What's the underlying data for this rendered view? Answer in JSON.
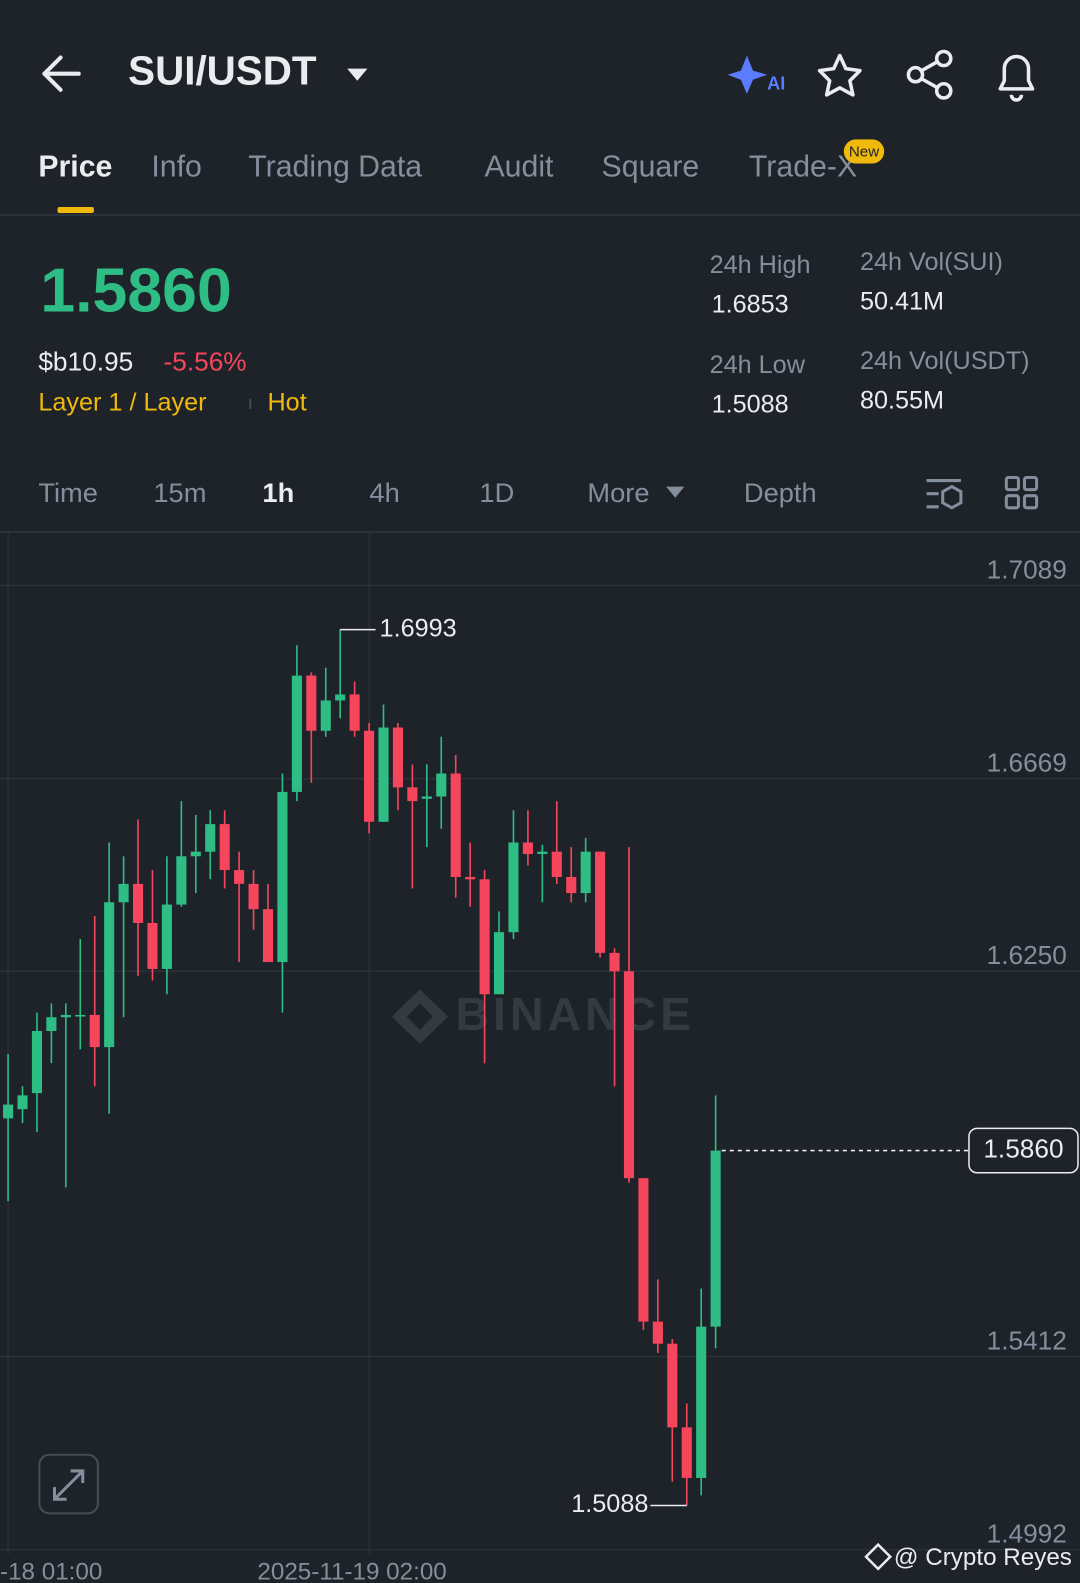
{
  "header": {
    "title": "SUI/USDT"
  },
  "tabs": {
    "items": [
      "Price",
      "Info",
      "Trading Data",
      "Audit",
      "Square",
      "Trade-X"
    ],
    "badge": "New"
  },
  "price": {
    "last": "1.5860",
    "fiat": "$b10.95",
    "change": "-5.56%",
    "tags": [
      "Layer 1 / Layer",
      "Hot"
    ]
  },
  "stats": [
    {
      "label": "24h High",
      "value": "1.6853"
    },
    {
      "label": "24h Vol(SUI)",
      "value": "50.41M"
    },
    {
      "label": "24h Low",
      "value": "1.5088"
    },
    {
      "label": "24h Vol(USDT)",
      "value": "80.55M"
    }
  ],
  "intervals": [
    "Time",
    "15m",
    "1h",
    "4h",
    "1D",
    "More",
    "Depth"
  ],
  "chart_data": {
    "type": "candlestick",
    "up_color": "#2ebd85",
    "down_color": "#f6465d",
    "grid": true,
    "ylim": [
      1.4981,
      1.7203
    ],
    "yticks": [
      1.7089,
      1.6669,
      {
        "value": 1.625,
        "label": "1.6250"
      },
      1.5412,
      1.4992
    ],
    "x_labels": [
      "-18 01:00",
      "2025-11-19 02:00"
    ],
    "last_price": {
      "value": 1.586,
      "label": "1.5860"
    },
    "watermark": "BINANCE",
    "open": [
      1.593,
      1.595,
      1.5985,
      1.612,
      1.615,
      1.6155,
      1.6155,
      1.6085,
      1.64,
      1.644,
      1.6355,
      1.6255,
      1.6395,
      1.65,
      1.651,
      1.657,
      1.647,
      1.644,
      1.6385,
      1.627,
      1.664,
      1.6893,
      1.6773,
      1.6839,
      1.6852,
      1.6773,
      1.6575,
      1.678,
      1.665,
      1.6625,
      1.663,
      1.668,
      1.6455,
      1.645,
      1.62,
      1.6335,
      1.653,
      1.6505,
      1.651,
      1.6455,
      1.642,
      1.651,
      1.629,
      1.625,
      1.58,
      1.5488,
      1.544,
      1.5258,
      1.5148,
      1.5477
    ],
    "high": [
      1.607,
      1.6,
      1.616,
      1.618,
      1.618,
      1.632,
      1.637,
      1.653,
      1.65,
      1.658,
      1.647,
      1.65,
      1.662,
      1.659,
      1.66,
      1.66,
      1.651,
      1.647,
      1.644,
      1.668,
      1.6959,
      1.69,
      1.691,
      1.6993,
      1.688,
      1.679,
      1.683,
      1.679,
      1.67,
      1.67,
      1.676,
      1.672,
      1.653,
      1.647,
      1.638,
      1.66,
      1.66,
      1.6525,
      1.662,
      1.652,
      1.654,
      1.651,
      1.63,
      1.652,
      1.58,
      1.558,
      1.545,
      1.531,
      1.556,
      1.598
    ],
    "low": [
      1.575,
      1.592,
      1.59,
      1.605,
      1.578,
      1.608,
      1.6,
      1.594,
      1.615,
      1.624,
      1.623,
      1.62,
      1.639,
      1.642,
      1.645,
      1.643,
      1.627,
      1.634,
      1.627,
      1.616,
      1.662,
      1.666,
      1.676,
      1.68,
      1.676,
      1.655,
      1.6575,
      1.66,
      1.643,
      1.652,
      1.656,
      1.641,
      1.639,
      1.605,
      1.62,
      1.632,
      1.648,
      1.64,
      1.644,
      1.64,
      1.64,
      1.628,
      1.6,
      1.579,
      1.547,
      1.542,
      1.514,
      1.5088,
      1.511,
      1.543
    ],
    "close": [
      1.596,
      1.598,
      1.612,
      1.615,
      1.6155,
      1.6155,
      1.6085,
      1.64,
      1.644,
      1.6355,
      1.6255,
      1.6395,
      1.65,
      1.651,
      1.657,
      1.647,
      1.644,
      1.6385,
      1.627,
      1.664,
      1.6893,
      1.6773,
      1.6839,
      1.6852,
      1.6773,
      1.6575,
      1.678,
      1.665,
      1.662,
      1.663,
      1.668,
      1.6455,
      1.645,
      1.62,
      1.6335,
      1.653,
      1.6505,
      1.651,
      1.6455,
      1.642,
      1.651,
      1.629,
      1.625,
      1.58,
      1.5488,
      1.544,
      1.5258,
      1.5148,
      1.5477,
      1.586
    ]
  },
  "credit": "@ Crypto Reyes"
}
